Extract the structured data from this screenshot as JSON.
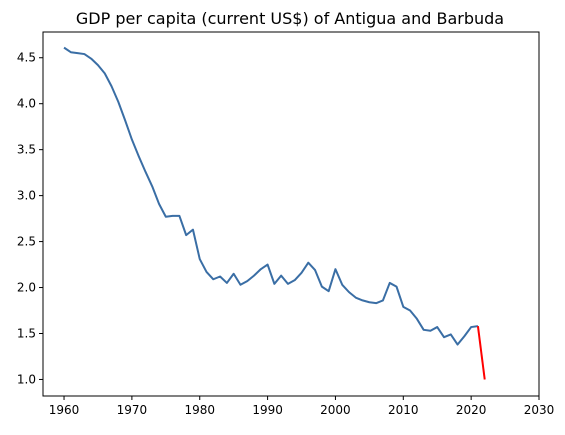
{
  "chart_data": {
    "type": "line",
    "title": "GDP per capita (current US$) of Antigua and Barbuda",
    "xlabel": "",
    "ylabel": "",
    "xlim": [
      1956.9,
      2030
    ],
    "ylim": [
      0.82,
      4.78
    ],
    "x_ticks": [
      1960,
      1970,
      1980,
      1990,
      2000,
      2010,
      2020,
      2030
    ],
    "y_ticks": [
      1.0,
      1.5,
      2.0,
      2.5,
      3.0,
      3.5,
      4.0,
      4.5
    ],
    "x_tick_labels": [
      "1960",
      "1970",
      "1980",
      "1990",
      "2000",
      "2010",
      "2020",
      "2030"
    ],
    "y_tick_labels": [
      "1.0",
      "1.5",
      "2.0",
      "2.5",
      "3.0",
      "3.5",
      "4.0",
      "4.5"
    ],
    "grid": false,
    "series": [
      {
        "color": "#3a6ea5",
        "x": [
          1960,
          1961,
          1962,
          1963,
          1964,
          1965,
          1966,
          1967,
          1968,
          1969,
          1970,
          1971,
          1972,
          1973,
          1974,
          1975,
          1976,
          1977,
          1978,
          1979,
          1980,
          1981,
          1982,
          1983,
          1984,
          1985,
          1986,
          1987,
          1988,
          1989,
          1990,
          1991,
          1992,
          1993,
          1994,
          1995,
          1996,
          1997,
          1998,
          1999,
          2000,
          2001,
          2002,
          2003,
          2004,
          2005,
          2006,
          2007,
          2008,
          2009,
          2010,
          2011,
          2012,
          2013,
          2014,
          2015,
          2016,
          2017,
          2018,
          2019,
          2020,
          2021
        ],
        "y": [
          4.61,
          4.56,
          4.55,
          4.54,
          4.49,
          4.42,
          4.33,
          4.19,
          4.02,
          3.82,
          3.61,
          3.43,
          3.26,
          3.1,
          2.91,
          2.77,
          2.78,
          2.78,
          2.57,
          2.63,
          2.31,
          2.17,
          2.09,
          2.12,
          2.05,
          2.15,
          2.03,
          2.07,
          2.13,
          2.2,
          2.25,
          2.04,
          2.13,
          2.04,
          2.08,
          2.16,
          2.27,
          2.19,
          2.01,
          1.96,
          2.2,
          2.03,
          1.95,
          1.89,
          1.86,
          1.84,
          1.83,
          1.86,
          2.05,
          2.01,
          1.79,
          1.75,
          1.66,
          1.54,
          1.53,
          1.57,
          1.46,
          1.49,
          1.38,
          1.47,
          1.57,
          1.58
        ]
      },
      {
        "color": "#ff0000",
        "x": [
          2021,
          2022
        ],
        "y": [
          1.58,
          1.0
        ]
      }
    ]
  }
}
